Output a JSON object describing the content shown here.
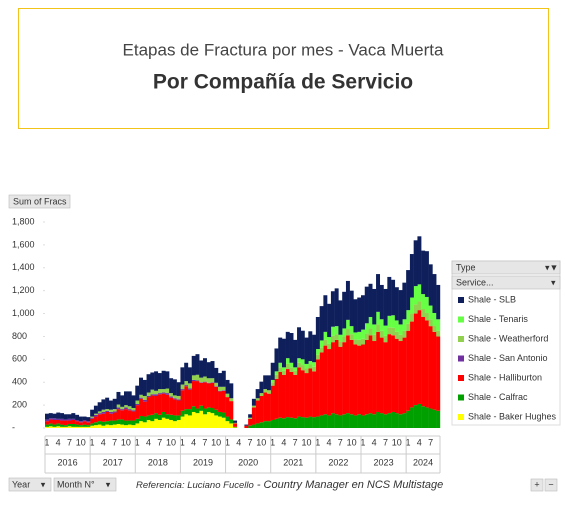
{
  "chart_data": {
    "type": "stacked-bar",
    "title": "Etapas de Fractura por mes - Vaca Muerta",
    "subtitle": "Por Compañía de Servicio",
    "value_field": "Sum of Fracs",
    "legend_title": "Type",
    "legend_filter": "Service...",
    "row_fields": [
      "Year",
      "Month N°"
    ],
    "years": [
      "2016",
      "2017",
      "2018",
      "2019",
      "2020",
      "2021",
      "2022",
      "2023",
      "2024"
    ],
    "categories": [
      "1",
      null,
      null,
      "4",
      null,
      null,
      "7",
      null,
      null,
      "10",
      null,
      null,
      "1",
      null,
      null,
      "4",
      null,
      null,
      "7",
      null,
      null,
      "10",
      null,
      null,
      "1",
      null,
      null,
      "4",
      null,
      null,
      "7",
      null,
      null,
      "10",
      null,
      null,
      "1",
      null,
      null,
      "4",
      null,
      null,
      "7",
      null,
      null,
      "10",
      null,
      null,
      "1",
      null,
      null,
      "4",
      null,
      null,
      "7",
      null,
      null,
      "10",
      null,
      null,
      "1",
      null,
      null,
      "4",
      null,
      null,
      "7",
      null,
      null,
      "10",
      null,
      null,
      "1",
      null,
      null,
      "4",
      null,
      null,
      "7",
      null,
      null,
      "10",
      null,
      null,
      "1",
      null,
      null,
      "4",
      null,
      null,
      "7",
      null,
      null,
      "10",
      null,
      null,
      "1",
      null,
      null,
      "4",
      null,
      null,
      "7",
      null,
      null
    ],
    "ylim": [
      0,
      1800
    ],
    "yticks": [
      {
        "value": 0,
        "label": "-"
      },
      200,
      400,
      600,
      800,
      {
        "value": 1000,
        "label": "1,000"
      },
      {
        "value": 1200,
        "label": "1,200"
      },
      {
        "value": 1400,
        "label": "1,400"
      },
      {
        "value": 1600,
        "label": "1,600"
      },
      {
        "value": 1800,
        "label": "1,800"
      }
    ],
    "series": [
      {
        "name": "Shale - Baker Hughes",
        "color": "#ffff00",
        "values": [
          10,
          15,
          10,
          15,
          10,
          10,
          15,
          10,
          10,
          10,
          10,
          10,
          20,
          25,
          30,
          20,
          30,
          25,
          30,
          35,
          30,
          25,
          30,
          25,
          40,
          60,
          50,
          70,
          60,
          80,
          70,
          90,
          80,
          70,
          60,
          70,
          100,
          120,
          110,
          140,
          130,
          150,
          120,
          140,
          130,
          110,
          100,
          90,
          60,
          40,
          5,
          0,
          0,
          0,
          0,
          0,
          0,
          0,
          0,
          0,
          0,
          0,
          0,
          0,
          0,
          0,
          0,
          0,
          0,
          0,
          0,
          0,
          0,
          0,
          0,
          0,
          0,
          0,
          0,
          0,
          0,
          0,
          0,
          0,
          0,
          0,
          0,
          0,
          0,
          0,
          0,
          0,
          0,
          0,
          0,
          0,
          0,
          0,
          0,
          0,
          0,
          0,
          0,
          0,
          0
        ]
      },
      {
        "name": "Shale - Calfrac",
        "color": "#00a000",
        "values": [
          20,
          25,
          20,
          25,
          20,
          15,
          20,
          25,
          20,
          15,
          20,
          15,
          20,
          25,
          30,
          35,
          30,
          40,
          35,
          40,
          45,
          40,
          35,
          40,
          40,
          45,
          50,
          40,
          55,
          50,
          45,
          50,
          40,
          45,
          50,
          40,
          50,
          45,
          55,
          50,
          40,
          45,
          50,
          40,
          45,
          50,
          40,
          45,
          40,
          35,
          5,
          0,
          0,
          0,
          20,
          30,
          40,
          50,
          60,
          60,
          70,
          80,
          90,
          85,
          95,
          90,
          85,
          100,
          95,
          90,
          100,
          95,
          100,
          110,
          120,
          110,
          130,
          120,
          110,
          120,
          130,
          120,
          110,
          120,
          110,
          120,
          130,
          120,
          140,
          130,
          120,
          130,
          140,
          130,
          120,
          130,
          150,
          180,
          200,
          210,
          190,
          180,
          170,
          160,
          150
        ]
      },
      {
        "name": "Shale - Halliburton",
        "color": "#ff0000",
        "values": [
          30,
          35,
          40,
          30,
          35,
          40,
          30,
          35,
          30,
          25,
          30,
          25,
          40,
          50,
          60,
          70,
          80,
          60,
          70,
          90,
          80,
          100,
          90,
          80,
          120,
          150,
          130,
          160,
          170,
          150,
          180,
          160,
          170,
          150,
          140,
          130,
          180,
          200,
          170,
          220,
          240,
          200,
          230,
          210,
          220,
          200,
          180,
          190,
          170,
          160,
          30,
          0,
          0,
          20,
          60,
          150,
          200,
          230,
          250,
          240,
          300,
          350,
          400,
          380,
          420,
          400,
          380,
          430,
          410,
          390,
          420,
          400,
          500,
          550,
          600,
          580,
          620,
          650,
          600,
          630,
          680,
          650,
          620,
          600,
          620,
          650,
          680,
          640,
          700,
          660,
          630,
          690,
          670,
          650,
          640,
          660,
          700,
          750,
          800,
          820,
          780,
          760,
          720,
          680,
          650
        ]
      },
      {
        "name": "Shale - San Antonio",
        "color": "#7030a0",
        "values": [
          15,
          10,
          15,
          10,
          15,
          10,
          15,
          10,
          10,
          10,
          10,
          10,
          10,
          15,
          10,
          15,
          10,
          15,
          10,
          15,
          10,
          15,
          10,
          10,
          10,
          10,
          15,
          10,
          10,
          15,
          10,
          10,
          15,
          10,
          10,
          10,
          10,
          10,
          10,
          10,
          5,
          5,
          5,
          5,
          5,
          5,
          5,
          5,
          0,
          0,
          0,
          0,
          0,
          0,
          0,
          0,
          0,
          0,
          0,
          0,
          0,
          0,
          0,
          0,
          0,
          0,
          0,
          0,
          0,
          0,
          0,
          0,
          0,
          0,
          0,
          0,
          0,
          0,
          0,
          0,
          0,
          0,
          0,
          0,
          0,
          0,
          0,
          0,
          0,
          0,
          0,
          0,
          0,
          0,
          0,
          0,
          0,
          0,
          0,
          0,
          0,
          0,
          0,
          0,
          0
        ]
      },
      {
        "name": "Shale - Weatherford",
        "color": "#92d050",
        "values": [
          0,
          0,
          0,
          0,
          0,
          0,
          0,
          0,
          0,
          0,
          0,
          0,
          10,
          10,
          15,
          20,
          15,
          20,
          20,
          25,
          20,
          20,
          25,
          20,
          30,
          25,
          35,
          30,
          40,
          30,
          35,
          30,
          40,
          30,
          25,
          30,
          40,
          35,
          45,
          40,
          50,
          40,
          45,
          40,
          35,
          30,
          35,
          30,
          30,
          25,
          5,
          0,
          0,
          0,
          10,
          15,
          20,
          25,
          30,
          30,
          30,
          35,
          40,
          35,
          45,
          40,
          35,
          40,
          45,
          40,
          35,
          40,
          40,
          45,
          50,
          45,
          55,
          50,
          45,
          50,
          55,
          50,
          45,
          50,
          50,
          55,
          60,
          55,
          65,
          60,
          55,
          60,
          65,
          60,
          55,
          60,
          60,
          70,
          80,
          75,
          70,
          65,
          60,
          55,
          50
        ]
      },
      {
        "name": "Shale - Tenaris",
        "color": "#66ff44",
        "values": [
          0,
          0,
          0,
          0,
          0,
          0,
          0,
          0,
          0,
          0,
          0,
          0,
          0,
          0,
          0,
          0,
          0,
          0,
          0,
          0,
          0,
          0,
          0,
          0,
          0,
          0,
          0,
          0,
          0,
          0,
          0,
          0,
          0,
          0,
          0,
          0,
          0,
          0,
          0,
          0,
          0,
          0,
          0,
          0,
          0,
          0,
          0,
          0,
          0,
          0,
          0,
          0,
          0,
          0,
          0,
          0,
          0,
          0,
          0,
          0,
          20,
          30,
          40,
          30,
          50,
          40,
          30,
          40,
          50,
          40,
          30,
          40,
          50,
          60,
          70,
          60,
          80,
          70,
          60,
          70,
          80,
          70,
          60,
          70,
          80,
          90,
          100,
          90,
          110,
          100,
          90,
          100,
          110,
          100,
          90,
          100,
          120,
          140,
          160,
          150,
          130,
          140,
          120,
          110,
          100
        ]
      },
      {
        "name": "Shale - SLB",
        "color": "#0e1f5b",
        "values": [
          50,
          45,
          40,
          55,
          50,
          45,
          40,
          50,
          45,
          40,
          30,
          35,
          60,
          70,
          80,
          90,
          100,
          80,
          90,
          110,
          100,
          120,
          130,
          110,
          130,
          150,
          140,
          160,
          150,
          170,
          140,
          160,
          150,
          130,
          140,
          120,
          150,
          160,
          140,
          170,
          180,
          150,
          160,
          140,
          150,
          130,
          120,
          140,
          120,
          130,
          20,
          0,
          0,
          10,
          30,
          60,
          80,
          100,
          120,
          130,
          150,
          200,
          220,
          250,
          230,
          260,
          240,
          270,
          250,
          230,
          260,
          240,
          280,
          300,
          320,
          290,
          310,
          330,
          300,
          320,
          340,
          310,
          290,
          300,
          300,
          320,
          290,
          310,
          330,
          300,
          320,
          340,
          310,
          290,
          300,
          320,
          350,
          380,
          400,
          420,
          380,
          400,
          360,
          340,
          300
        ]
      }
    ]
  },
  "footer": {
    "note_prefix": "Referencia:  Luciano Fucello",
    "note_rest": " - Country Manager en NCS Multistage"
  }
}
